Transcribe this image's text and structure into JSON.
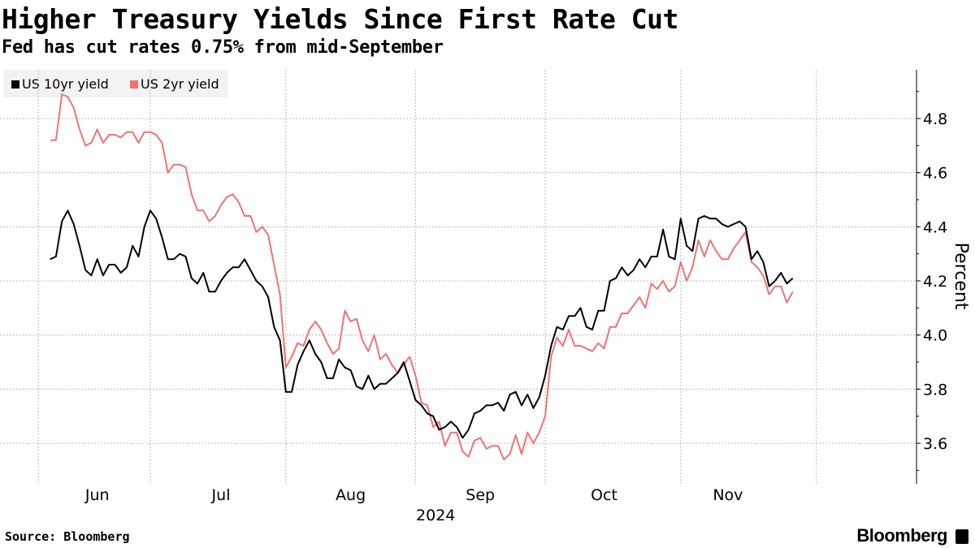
{
  "header": {
    "title": "Higher Treasury Yields Since First Rate Cut",
    "subtitle": "Fed has cut rates 0.75% from mid-September"
  },
  "footer": {
    "source": "Source: Bloomberg",
    "brand": "Bloomberg"
  },
  "colors": {
    "series_10yr": "#000000",
    "series_2yr": "#f07373",
    "grid": "#bbbbbb",
    "legend_bg": "#f2f2f2"
  },
  "chart_data": {
    "type": "line",
    "title": "Higher Treasury Yields Since First Rate Cut",
    "subtitle": "Fed has cut rates 0.75% from mid-September",
    "xlabel": "2024",
    "ylabel": "Percent",
    "ylim": [
      3.45,
      4.98
    ],
    "yticks": [
      3.6,
      3.8,
      4.0,
      4.2,
      4.4,
      4.6,
      4.8
    ],
    "ytick_labels": [
      "3.6",
      "3.8",
      "4.0",
      "4.2",
      "4.4",
      "4.6",
      "4.8"
    ],
    "x_axis_year": "2024",
    "month_labels": [
      "Jun",
      "Jul",
      "Aug",
      "Sep",
      "Oct",
      "Nov"
    ],
    "month_label_positions": [
      8,
      29,
      51,
      73,
      94,
      115
    ],
    "month_boundaries": [
      -2,
      17,
      40,
      62,
      84,
      107,
      130
    ],
    "x_range": [
      -8.5,
      147
    ],
    "grid": true,
    "legend": [
      {
        "name": "US 10yr yield"
      },
      {
        "name": "US 2yr yield"
      }
    ],
    "legend_position": "top-left",
    "series": [
      {
        "name": "US 10yr yield",
        "color": "#000000",
        "values": [
          4.28,
          4.29,
          4.42,
          4.46,
          4.41,
          4.33,
          4.24,
          4.22,
          4.28,
          4.22,
          4.26,
          4.26,
          4.23,
          4.25,
          4.33,
          4.29,
          4.4,
          4.46,
          4.43,
          4.36,
          4.28,
          4.28,
          4.3,
          4.29,
          4.21,
          4.19,
          4.23,
          4.16,
          4.16,
          4.2,
          4.23,
          4.25,
          4.25,
          4.28,
          4.24,
          4.2,
          4.18,
          4.14,
          4.03,
          3.98,
          3.79,
          3.79,
          3.89,
          3.94,
          3.98,
          3.93,
          3.9,
          3.84,
          3.84,
          3.91,
          3.88,
          3.87,
          3.81,
          3.8,
          3.85,
          3.8,
          3.82,
          3.82,
          3.84,
          3.86,
          3.9,
          3.83,
          3.76,
          3.74,
          3.71,
          3.7,
          3.65,
          3.66,
          3.68,
          3.66,
          3.62,
          3.65,
          3.71,
          3.72,
          3.74,
          3.74,
          3.75,
          3.72,
          3.78,
          3.79,
          3.74,
          3.78,
          3.73,
          3.77,
          3.85,
          3.96,
          4.03,
          4.02,
          4.07,
          4.07,
          4.1,
          4.03,
          4.02,
          4.09,
          4.09,
          4.2,
          4.21,
          4.25,
          4.22,
          4.24,
          4.28,
          4.25,
          4.29,
          4.29,
          4.39,
          4.29,
          4.28,
          4.43,
          4.33,
          4.31,
          4.43,
          4.44,
          4.43,
          4.43,
          4.41,
          4.4,
          4.41,
          4.42,
          4.4,
          4.28,
          4.31,
          4.27,
          4.18,
          4.2,
          4.23,
          4.19,
          4.21
        ]
      },
      {
        "name": "US 2yr yield",
        "color": "#f07373",
        "values": [
          4.72,
          4.72,
          4.89,
          4.88,
          4.84,
          4.76,
          4.7,
          4.71,
          4.76,
          4.71,
          4.74,
          4.74,
          4.73,
          4.75,
          4.75,
          4.71,
          4.75,
          4.75,
          4.74,
          4.71,
          4.6,
          4.63,
          4.63,
          4.62,
          4.52,
          4.46,
          4.46,
          4.42,
          4.44,
          4.48,
          4.51,
          4.52,
          4.49,
          4.44,
          4.44,
          4.38,
          4.4,
          4.37,
          4.26,
          4.15,
          3.88,
          3.92,
          3.97,
          3.96,
          4.02,
          4.05,
          4.02,
          3.97,
          3.93,
          3.95,
          4.09,
          4.05,
          4.06,
          3.98,
          3.94,
          4.0,
          3.91,
          3.93,
          3.89,
          3.86,
          3.89,
          3.92,
          3.85,
          3.75,
          3.74,
          3.66,
          3.68,
          3.59,
          3.64,
          3.64,
          3.57,
          3.55,
          3.61,
          3.62,
          3.58,
          3.59,
          3.59,
          3.54,
          3.56,
          3.63,
          3.56,
          3.64,
          3.6,
          3.64,
          3.7,
          3.92,
          3.99,
          3.96,
          4.02,
          3.96,
          3.96,
          3.95,
          3.94,
          3.97,
          3.95,
          4.03,
          4.03,
          4.08,
          4.08,
          4.11,
          4.14,
          4.1,
          4.19,
          4.17,
          4.2,
          4.16,
          4.18,
          4.27,
          4.2,
          4.25,
          4.35,
          4.29,
          4.35,
          4.31,
          4.28,
          4.28,
          4.32,
          4.35,
          4.38,
          4.27,
          4.25,
          4.22,
          4.15,
          4.18,
          4.18,
          4.12,
          4.16
        ]
      }
    ]
  }
}
